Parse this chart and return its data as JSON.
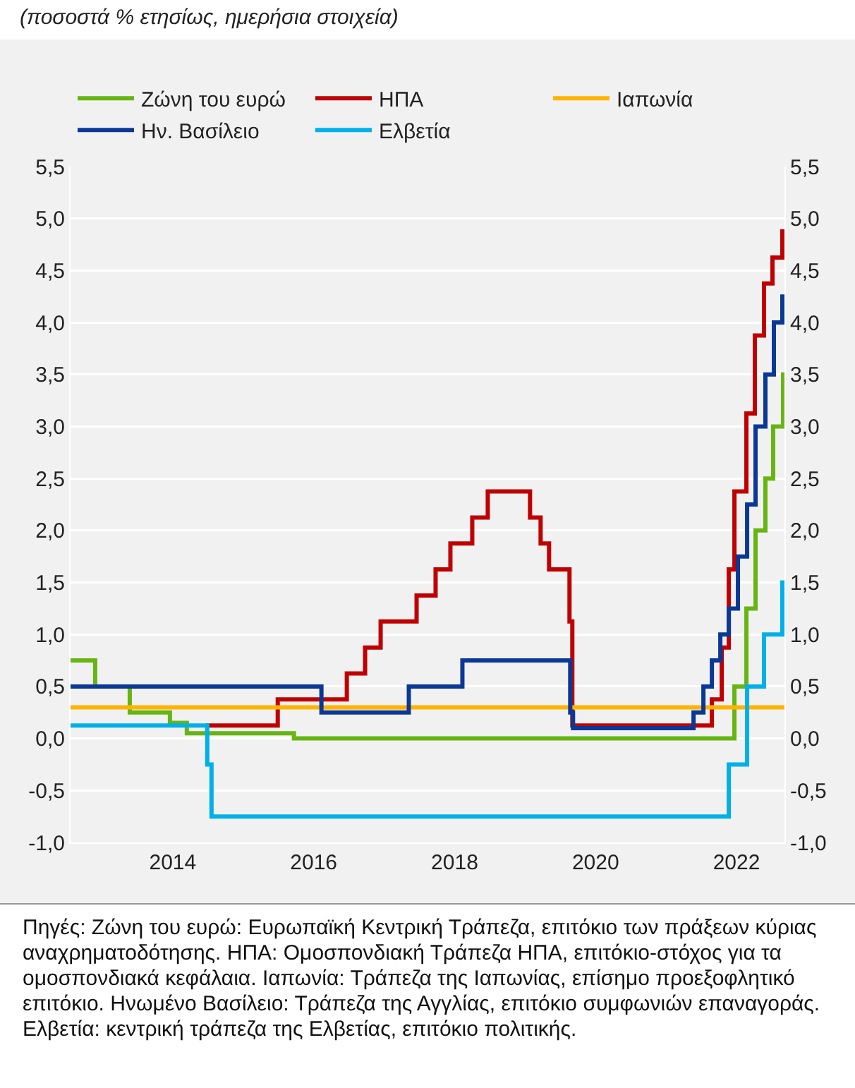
{
  "chart_data": {
    "type": "step",
    "subtitle": "(ποσοστά % ετησίως, ημερήσια στοιχεία)",
    "series": [
      {
        "name": "Ζώνη του ευρώ",
        "color": "#66b512",
        "x": [
          2012.55,
          2012.9,
          2013.39,
          2013.96,
          2014.2,
          2015.72,
          2021.97,
          2022.14,
          2022.27,
          2022.41,
          2022.52,
          2022.66,
          2022.68
        ],
        "values": [
          0.75,
          0.5,
          0.25,
          0.15,
          0.05,
          0,
          0.5,
          1.25,
          2,
          2.5,
          3,
          3.5,
          3.5
        ]
      },
      {
        "name": "ΗΠΑ",
        "color": "#c00000",
        "x": [
          2014.47,
          2015.49,
          2016.47,
          2016.73,
          2016.95,
          2017.46,
          2017.73,
          2017.94,
          2018.25,
          2018.47,
          2019.07,
          2019.22,
          2019.34,
          2019.63,
          2019.67,
          2021.65,
          2021.79,
          2021.89,
          2021.97,
          2022.14,
          2022.26,
          2022.39,
          2022.51,
          2022.65,
          2022.68
        ],
        "values": [
          0.125,
          0.375,
          0.625,
          0.875,
          1.125,
          1.375,
          1.625,
          1.875,
          2.125,
          2.375,
          2.125,
          1.875,
          1.625,
          1.125,
          0.125,
          0.375,
          0.875,
          1.625,
          2.375,
          3.125,
          3.875,
          4.375,
          4.625,
          4.875,
          4.875
        ]
      },
      {
        "name": "Ιαπωνία",
        "color": "#ffb300",
        "x": [
          2012.55,
          2022.68
        ],
        "values": [
          0.3,
          0.3
        ]
      },
      {
        "name": "Ην. Βασίλειο",
        "color": "#0a3896",
        "x": [
          2012.55,
          2016.11,
          2017.35,
          2018.11,
          2019.64,
          2019.68,
          2021.39,
          2021.53,
          2021.65,
          2021.77,
          2021.89,
          2022.02,
          2022.15,
          2022.27,
          2022.41,
          2022.53,
          2022.65,
          2022.68
        ],
        "values": [
          0.5,
          0.25,
          0.5,
          0.75,
          0.25,
          0.1,
          0.25,
          0.5,
          0.75,
          1,
          1.25,
          1.75,
          2.25,
          3,
          3.5,
          4,
          4.25,
          4.25
        ]
      },
      {
        "name": "Ελβετία",
        "color": "#00b0e8",
        "x": [
          2012.55,
          2014.49,
          2014.55,
          2021.89,
          2022.15,
          2022.39,
          2022.65,
          2022.68
        ],
        "values": [
          0.125,
          -0.25,
          -0.75,
          -0.25,
          0.5,
          1,
          1.5,
          1.5
        ]
      }
    ],
    "xlim": [
      2012.55,
      2022.68
    ],
    "xticks": [
      2014,
      2016,
      2018,
      2020,
      2022
    ],
    "ylim": [
      -1,
      5.5
    ],
    "yticks": [
      {
        "value": -1,
        "label": "-1,0"
      },
      {
        "value": -0.5,
        "label": "-0,5"
      },
      {
        "value": 0,
        "label": "0,0"
      },
      {
        "value": 0.5,
        "label": "0,5"
      },
      {
        "value": 1,
        "label": "1,0"
      },
      {
        "value": 1.5,
        "label": "1,5"
      },
      {
        "value": 2,
        "label": "2,0"
      },
      {
        "value": 2.5,
        "label": "2,5"
      },
      {
        "value": 3,
        "label": "3,0"
      },
      {
        "value": 3.5,
        "label": "3,5"
      },
      {
        "value": 4,
        "label": "4,0"
      },
      {
        "value": 4.5,
        "label": "4,5"
      },
      {
        "value": 5,
        "label": "5,0"
      },
      {
        "value": 5.5,
        "label": "5,5"
      }
    ],
    "y2lim": [
      -1,
      5.5
    ],
    "y2ticks": [
      {
        "value": -1,
        "label": "-1,0"
      },
      {
        "value": -0.5,
        "label": "-0,5"
      },
      {
        "value": 0,
        "label": "0,0"
      },
      {
        "value": 0.5,
        "label": "0,5"
      },
      {
        "value": 1,
        "label": "1,0"
      },
      {
        "value": 1.5,
        "label": "1,5"
      },
      {
        "value": 2,
        "label": "2,0"
      },
      {
        "value": 2.5,
        "label": "2,5"
      },
      {
        "value": 3,
        "label": "3,0"
      },
      {
        "value": 3.5,
        "label": "3,5"
      },
      {
        "value": 4,
        "label": "4,0"
      },
      {
        "value": 4.5,
        "label": "4,5"
      },
      {
        "value": 5,
        "label": "5,0"
      },
      {
        "value": 5.5,
        "label": "5,5"
      }
    ],
    "grid": "y",
    "legend": "top",
    "line_style": "solid",
    "marker": "none",
    "annotations": [
      "Πηγές: Ζώνη του ευρώ: Ευρωπαϊκή Κεντρική Τράπεζα, επιτόκιο των πράξεων κύριας αναχρηματοδότησης. ΗΠΑ: Ομοσπονδιακή Τράπεζα ΗΠΑ, επιτόκιο-στόχος για τα ομοσπονδιακά κεφάλαια. Ιαπωνία: Τράπεζα της Ιαπωνίας, επίσημο προεξοφλητικό επιτόκιο. Ηνωμένο Βασίλειο: Τράπεζα της Αγγλίας, επιτόκιο συμφωνιών επαναγοράς. Ελβετία: κεντρική τράπεζα της Ελβετίας, επιτόκιο πολιτικής."
    ]
  }
}
